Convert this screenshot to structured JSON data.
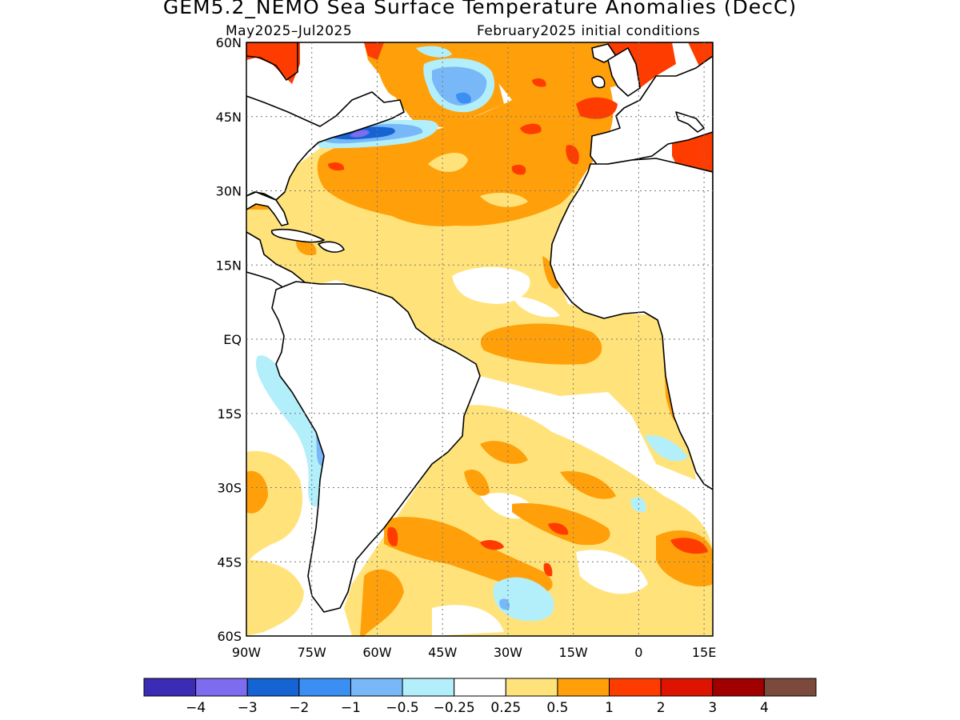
{
  "title": "GEM5.2_NEMO Sea Surface Temperature Anomalies (DecC)",
  "subtitle_left": "May2025–Jul2025",
  "subtitle_right": "February2025 initial conditions",
  "map": {
    "lat_labels": [
      "60N",
      "45N",
      "30N",
      "15N",
      "EQ",
      "15S",
      "30S",
      "45S",
      "60S"
    ],
    "lon_labels": [
      "90W",
      "75W",
      "60W",
      "45W",
      "30W",
      "15W",
      "0",
      "15E"
    ],
    "lat_range": [
      -60,
      60
    ],
    "lon_range": [
      -90,
      17
    ],
    "grid": "dotted"
  },
  "colorbar": {
    "colors": [
      "#3c2bb4",
      "#7d6cf0",
      "#1664d4",
      "#3c8ff2",
      "#78b8f8",
      "#b2effa",
      "#ffffff",
      "#ffe37a",
      "#ffa00a",
      "#ff3c00",
      "#de1400",
      "#a00000",
      "#7b4a3c"
    ],
    "labels": [
      "−4",
      "−3",
      "−2",
      "−1",
      "−0.5",
      "−0.25",
      "0.25",
      "0.5",
      "1",
      "2",
      "3",
      "4"
    ]
  }
}
